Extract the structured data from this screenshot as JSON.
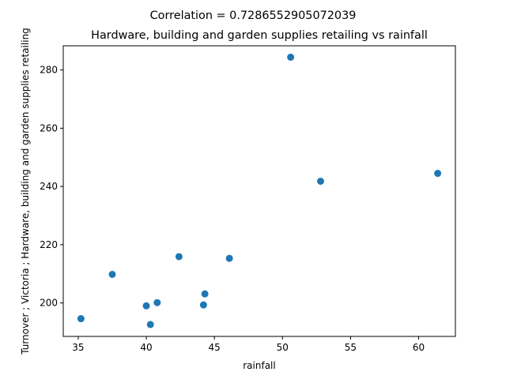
{
  "chart_data": {
    "type": "scatter",
    "suptitle": "Correlation = 0.7286552905072039",
    "title": "Hardware, building and garden supplies retailing vs rainfall",
    "xlabel": "rainfall",
    "ylabel": "Turnover ;  Victoria ;  Hardware, building and garden supplies retailing",
    "xlim": [
      33.9,
      62.7
    ],
    "ylim": [
      188.5,
      288.3
    ],
    "xticks": [
      35,
      40,
      45,
      50,
      55,
      60
    ],
    "yticks": [
      200,
      220,
      240,
      260,
      280
    ],
    "grid": false,
    "marker_color": "#1f77b4",
    "points": [
      {
        "x": 35.2,
        "y": 194.6
      },
      {
        "x": 37.5,
        "y": 209.8
      },
      {
        "x": 40.0,
        "y": 199.0
      },
      {
        "x": 40.3,
        "y": 192.6
      },
      {
        "x": 40.8,
        "y": 200.1
      },
      {
        "x": 42.4,
        "y": 215.9
      },
      {
        "x": 44.2,
        "y": 199.3
      },
      {
        "x": 44.3,
        "y": 203.1
      },
      {
        "x": 46.1,
        "y": 215.3
      },
      {
        "x": 50.6,
        "y": 284.4
      },
      {
        "x": 52.8,
        "y": 241.8
      },
      {
        "x": 61.4,
        "y": 244.5
      }
    ]
  }
}
